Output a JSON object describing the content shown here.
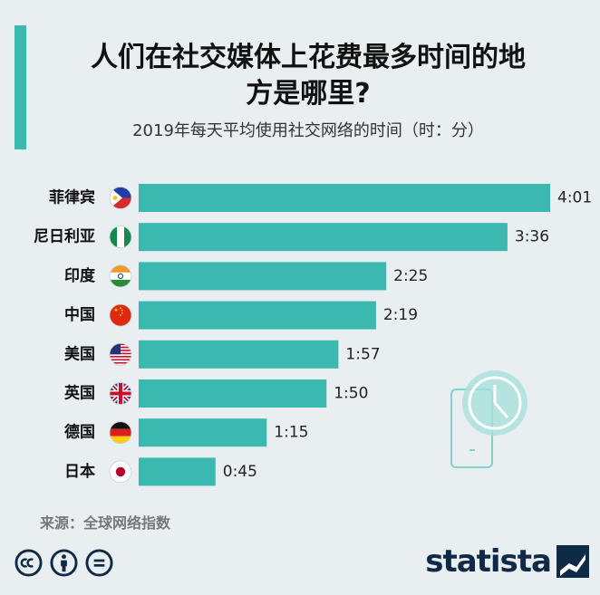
{
  "header": {
    "title_line1": "人们在社交媒体上花费最多时间的地",
    "title_line2": "方是哪里?",
    "subtitle": "2019年每天平均使用社交网络的时间（时：分）"
  },
  "footer": {
    "source": "来源：全球网络指数",
    "brand": "statista"
  },
  "colors": {
    "accent": "#3bb8b0",
    "bar": "#3bb8b0",
    "background": "#e9eef1",
    "brand": "#0f2a46"
  },
  "chart_data": {
    "type": "bar",
    "orientation": "horizontal",
    "categories": [
      "菲律宾",
      "尼日利亚",
      "印度",
      "中国",
      "美国",
      "英国",
      "德国",
      "日本"
    ],
    "flags": [
      "philippines-flag",
      "nigeria-flag",
      "india-flag",
      "china-flag",
      "usa-flag",
      "uk-flag",
      "germany-flag",
      "japan-flag"
    ],
    "values": [
      241,
      216,
      145,
      139,
      117,
      110,
      75,
      45
    ],
    "labels": [
      "4:01",
      "3:36",
      "2:25",
      "2:19",
      "1:57",
      "1:50",
      "1:15",
      "0:45"
    ],
    "unit": "minutes",
    "xlim": [
      0,
      241
    ],
    "grid": false,
    "legend": "none"
  }
}
